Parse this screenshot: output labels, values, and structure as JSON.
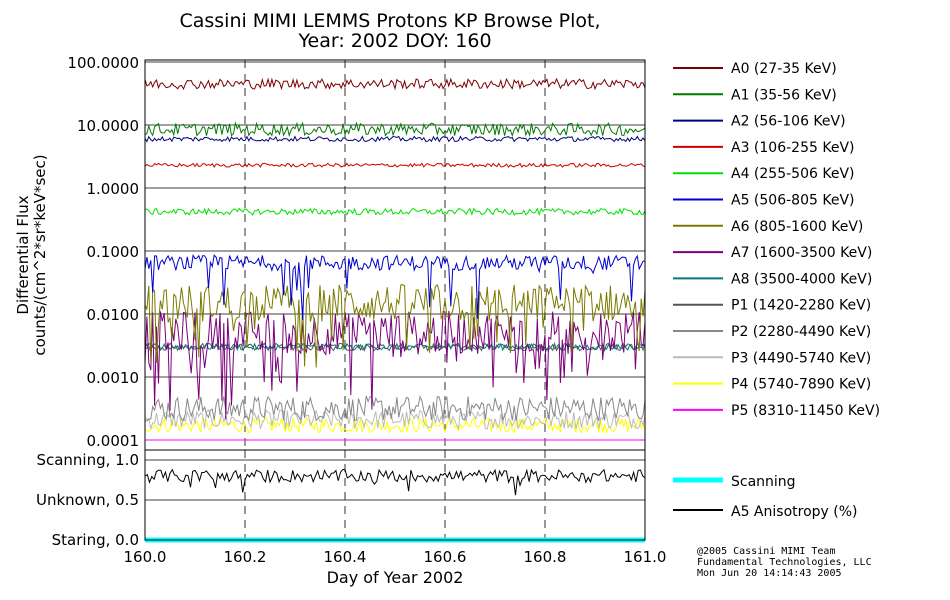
{
  "chart_data": [
    {
      "type": "line",
      "title": "Cassini MIMI LEMMS Protons KP Browse Plot,",
      "subtitle": "Year: 2002 DOY: 160",
      "ylabel_line1": "Differential Flux",
      "ylabel_line2": "counts/(cm^2*sr*keV*sec)",
      "yscale": "log",
      "ylim": [
        0.0001,
        100
      ],
      "yticks": [
        {
          "value": 100,
          "label": "100.0000"
        },
        {
          "value": 10,
          "label": "10.0000"
        },
        {
          "value": 1,
          "label": "1.0000"
        },
        {
          "value": 0.1,
          "label": "0.1000"
        },
        {
          "value": 0.01,
          "label": "0.0100"
        },
        {
          "value": 0.001,
          "label": "0.0010"
        },
        {
          "value": 0.0001,
          "label": "0.0001"
        }
      ],
      "xlim": [
        160.0,
        161.0
      ],
      "series": [
        {
          "name": "A0 (27-35 KeV)",
          "color": "#7a0000",
          "mean": 45,
          "spread": 0.08,
          "kind": "steady"
        },
        {
          "name": "A1 (35-56 KeV)",
          "color": "#007a00",
          "mean": 8.5,
          "spread": 0.1,
          "kind": "steady"
        },
        {
          "name": "A2 (56-106 KeV)",
          "color": "#00007a",
          "mean": 6,
          "spread": 0.04,
          "kind": "steady"
        },
        {
          "name": "A3 (106-255 KeV)",
          "color": "#cc0000",
          "mean": 2.3,
          "spread": 0.03,
          "kind": "steady"
        },
        {
          "name": "A4 (255-506 KeV)",
          "color": "#00e000",
          "mean": 0.42,
          "spread": 0.05,
          "kind": "steady"
        },
        {
          "name": "A5 (506-805 KeV)",
          "color": "#0000cc",
          "mean": 0.065,
          "spread": 0.12,
          "kind": "noisy"
        },
        {
          "name": "A6 (805-1600 KeV)",
          "color": "#7a7a00",
          "mean": 0.015,
          "spread": 0.3,
          "kind": "noisy"
        },
        {
          "name": "A7 (1600-3500 KeV)",
          "color": "#7a007a",
          "mean": 0.005,
          "spread": 0.35,
          "kind": "spiky"
        },
        {
          "name": "A8 (3500-4000 KeV)",
          "color": "#007a7a",
          "mean": 0.003,
          "spread": 0.05,
          "kind": "steady"
        },
        {
          "name": "P1 (1420-2280 KeV)",
          "color": "#555555",
          "mean": 0.003,
          "spread": 0.06,
          "kind": "steady"
        },
        {
          "name": "P2 (2280-4490 KeV)",
          "color": "#888888",
          "mean": 0.0002,
          "spread": 0.2,
          "kind": "floor"
        },
        {
          "name": "P3 (4490-5740 KeV)",
          "color": "#bbbbbb",
          "mean": 0.00015,
          "spread": 0.15,
          "kind": "floor"
        },
        {
          "name": "P4 (5740-7890 KeV)",
          "color": "#ffff00",
          "mean": 0.00013,
          "spread": 0.12,
          "kind": "floor"
        },
        {
          "name": "P5 (8310-11450 KeV)",
          "color": "#ff00ff",
          "mean": 0.0001,
          "spread": 0.0,
          "kind": "floor"
        }
      ]
    },
    {
      "type": "line",
      "ylim": [
        0.0,
        1.0
      ],
      "yticks": [
        {
          "value": 1.0,
          "label": "Scanning, 1.0"
        },
        {
          "value": 0.5,
          "label": "Unknown, 0.5"
        },
        {
          "value": 0.0,
          "label": "Staring, 0.0"
        }
      ],
      "xlim": [
        160.0,
        161.0
      ],
      "xlabel": "Day of Year 2002",
      "xticks": [
        {
          "value": 160.0,
          "label": "160.0"
        },
        {
          "value": 160.2,
          "label": "160.2"
        },
        {
          "value": 160.4,
          "label": "160.4"
        },
        {
          "value": 160.6,
          "label": "160.6"
        },
        {
          "value": 160.8,
          "label": "160.8"
        },
        {
          "value": 161.0,
          "label": "161.0"
        }
      ],
      "series": [
        {
          "name": "Scanning",
          "color": "#00ffff",
          "mean": 0.0,
          "spread": 0.0
        },
        {
          "name": "A5 Anisotropy (%)",
          "color": "#000000",
          "mean": 0.8,
          "spread": 0.08
        }
      ]
    }
  ],
  "footer": {
    "line1": "@2005 Cassini MIMI Team",
    "line2": "Fundamental Technologies, LLC",
    "line3": "Mon Jun 20 14:14:43 2005"
  }
}
